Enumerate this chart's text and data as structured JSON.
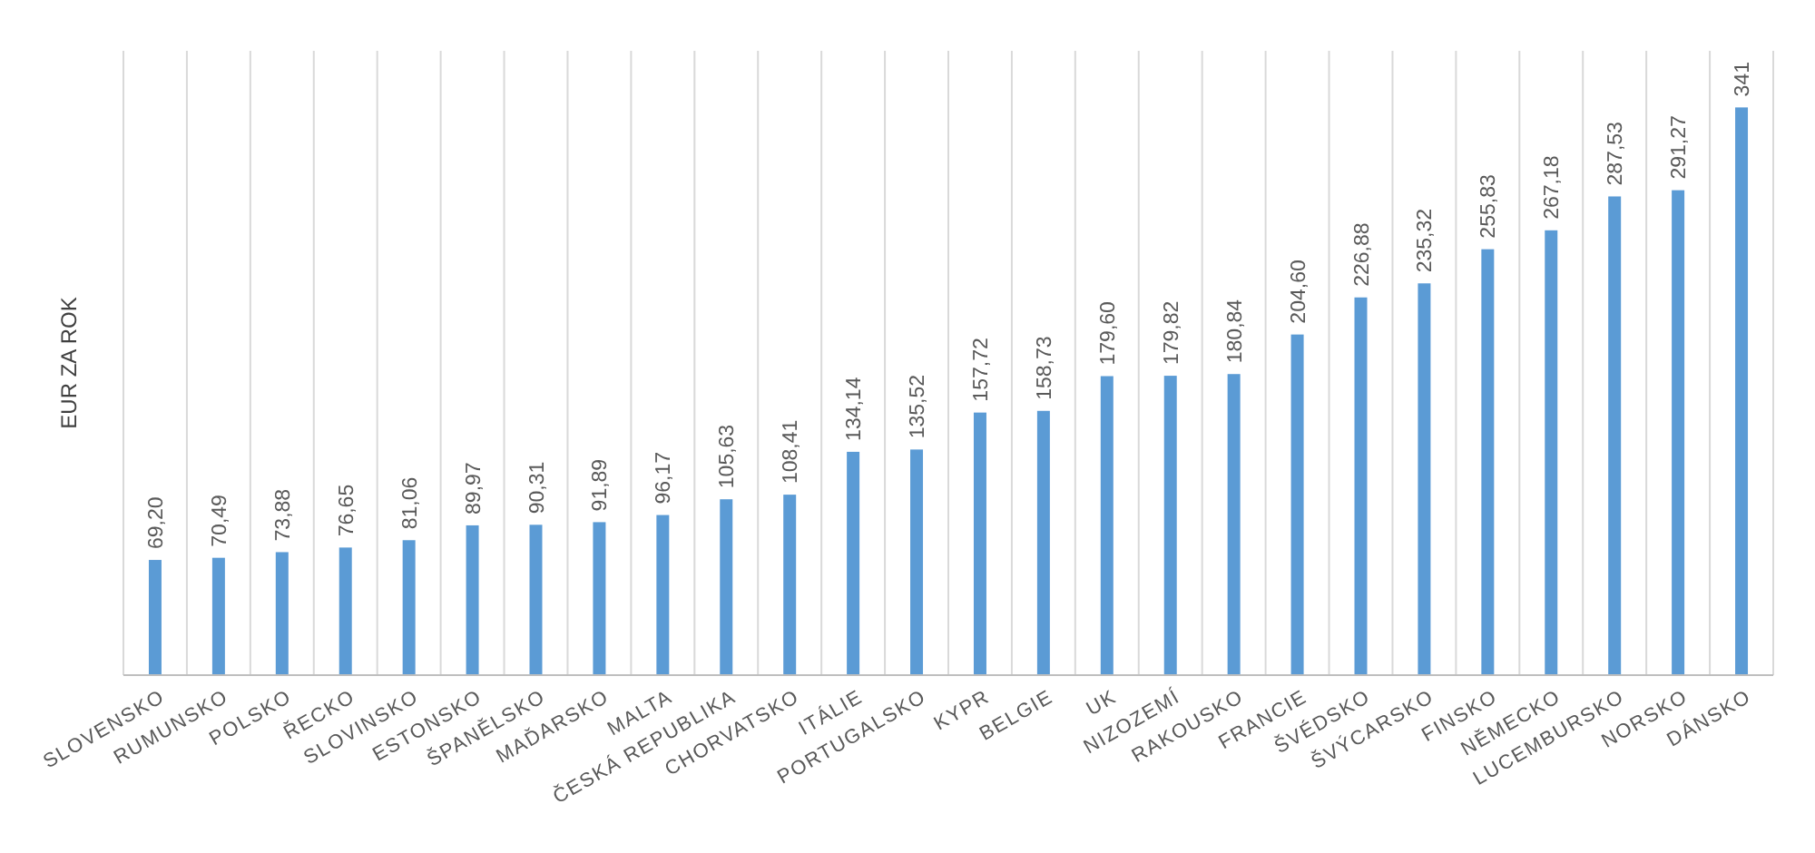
{
  "chart_data": {
    "type": "bar",
    "ylabel": "EUR ZA ROK",
    "categories": [
      "SLOVENSKO",
      "RUMUNSKO",
      "POLSKO",
      "ŘECKO",
      "SLOVINSKO",
      "ESTONSKO",
      "ŠPANĚLSKO",
      "MAĎARSKO",
      "MALTA",
      "ČESKÁ REPUBLIKA",
      "CHORVATSKO",
      "ITÁLIE",
      "PORTUGALSKO",
      "KYPR",
      "BELGIE",
      "UK",
      "NIZOZEMÍ",
      "RAKOUSKO",
      "FRANCIE",
      "ŠVÉDSKO",
      "ŠVÝCARSKO",
      "FINSKO",
      "NĚMECKO",
      "LUCEMBURSKO",
      "NORSKO",
      "DÁNSKO"
    ],
    "values": [
      69.2,
      70.49,
      73.88,
      76.65,
      81.06,
      89.97,
      90.31,
      91.89,
      96.17,
      105.63,
      108.41,
      134.14,
      135.52,
      157.72,
      158.73,
      179.6,
      179.82,
      180.84,
      204.6,
      226.88,
      235.32,
      255.83,
      267.18,
      287.53,
      291.27,
      341
    ],
    "value_labels": [
      "69,20",
      "70,49",
      "73,88",
      "76,65",
      "81,06",
      "89,97",
      "90,31",
      "91,89",
      "96,17",
      "105,63",
      "108,41",
      "134,14",
      "135,52",
      "157,72",
      "158,73",
      "179,60",
      "179,82",
      "180,84",
      "204,60",
      "226,88",
      "235,32",
      "255,83",
      "267,18",
      "287,53",
      "291,27",
      "341"
    ],
    "color": "#5b9bd5",
    "ylim": [
      0,
      375
    ],
    "grid": "x",
    "tick_labels": "x"
  }
}
